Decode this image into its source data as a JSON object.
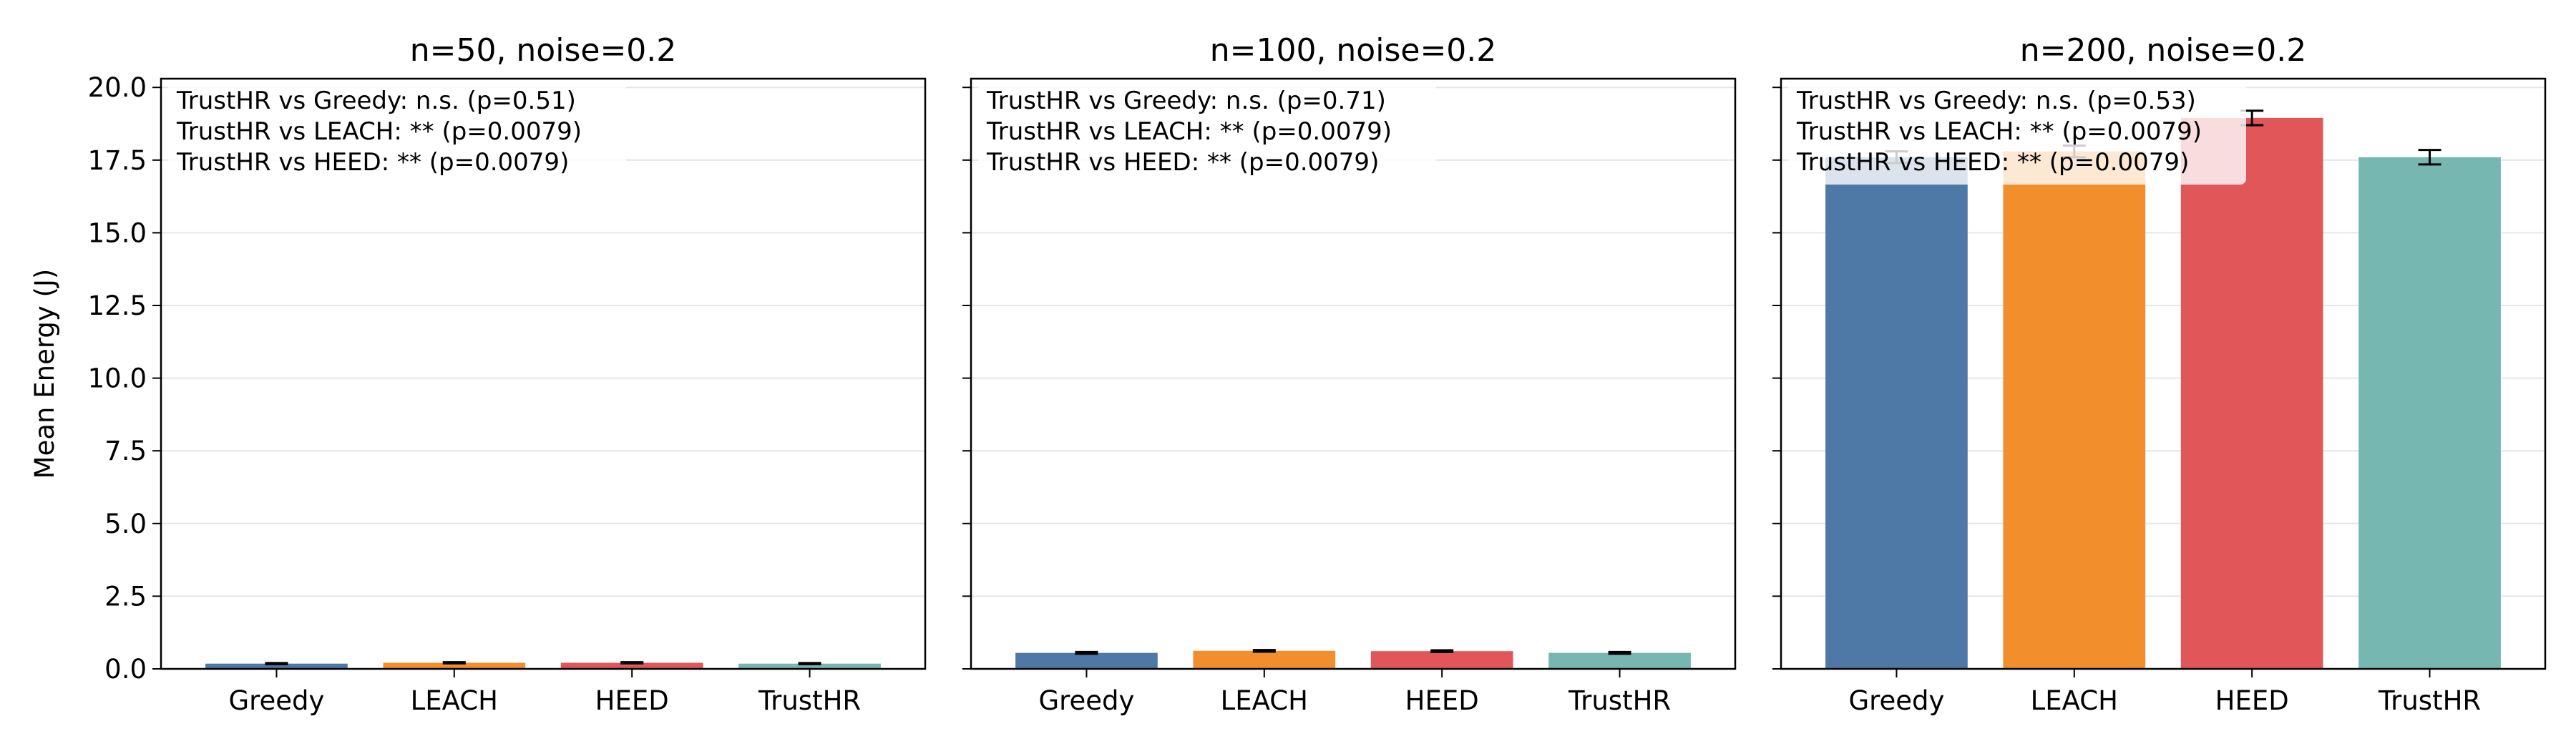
{
  "chart_data": [
    {
      "type": "bar",
      "title": "n=50, noise=0.2",
      "categories": [
        "Greedy",
        "LEACH",
        "HEED",
        "TrustHR"
      ],
      "values": [
        0.18,
        0.21,
        0.21,
        0.18
      ],
      "errors": [
        0.02,
        0.02,
        0.02,
        0.02
      ],
      "ylabel": "Mean Energy (J)",
      "ylim": [
        0,
        20.3
      ],
      "yticks": [
        "0.0",
        "2.5",
        "5.0",
        "7.5",
        "10.0",
        "12.5",
        "15.0",
        "17.5",
        "20.0"
      ],
      "grid": "y",
      "annotations": [
        "TrustHR vs Greedy: n.s. (p=0.51)",
        "TrustHR vs LEACH: ** (p=0.0079)",
        "TrustHR vs HEED: ** (p=0.0079)"
      ]
    },
    {
      "type": "bar",
      "title": "n=100, noise=0.2",
      "categories": [
        "Greedy",
        "LEACH",
        "HEED",
        "TrustHR"
      ],
      "values": [
        0.55,
        0.62,
        0.61,
        0.55
      ],
      "errors": [
        0.03,
        0.03,
        0.03,
        0.03
      ],
      "ylabel": "",
      "ylim": [
        0,
        20.3
      ],
      "grid": "y",
      "annotations": [
        "TrustHR vs Greedy: n.s. (p=0.71)",
        "TrustHR vs LEACH: ** (p=0.0079)",
        "TrustHR vs HEED: ** (p=0.0079)"
      ]
    },
    {
      "type": "bar",
      "title": "n=200, noise=0.2",
      "categories": [
        "Greedy",
        "LEACH",
        "HEED",
        "TrustHR"
      ],
      "values": [
        17.6,
        17.8,
        18.95,
        17.6
      ],
      "errors": [
        0.2,
        0.2,
        0.25,
        0.25
      ],
      "ylabel": "",
      "ylim": [
        0,
        20.3
      ],
      "grid": "y",
      "annotations": [
        "TrustHR vs Greedy: n.s. (p=0.53)",
        "TrustHR vs LEACH: ** (p=0.0079)",
        "TrustHR vs HEED: ** (p=0.0079)"
      ]
    }
  ],
  "colors": {
    "Greedy": "#4e79a7",
    "LEACH": "#f28e2b",
    "HEED": "#e15759",
    "TrustHR": "#76b7b2"
  }
}
